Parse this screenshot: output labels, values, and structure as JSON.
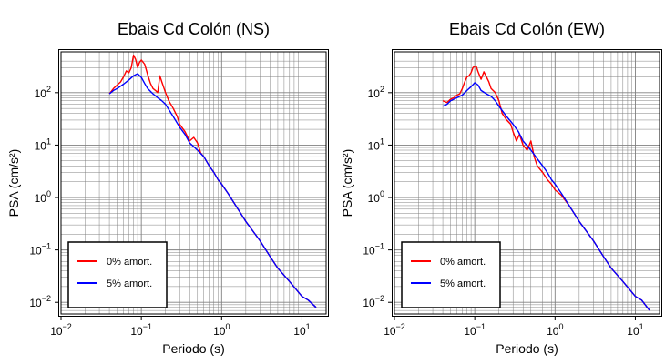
{
  "chart_data": [
    {
      "type": "line",
      "title": "Ebais Cd Colón (NS)",
      "xlabel": "Periodo (s)",
      "ylabel": "PSA (cm/s²)",
      "x_scale": "log",
      "y_scale": "log",
      "xlim": [
        0.01,
        20
      ],
      "ylim": [
        0.006,
        600
      ],
      "x_tick_labels": [
        {
          "v": 0.01,
          "base": "10",
          "exp": "−2"
        },
        {
          "v": 0.1,
          "base": "10",
          "exp": "−1"
        },
        {
          "v": 1,
          "base": "10",
          "exp": "0"
        },
        {
          "v": 10,
          "base": "10",
          "exp": "1"
        }
      ],
      "y_tick_labels": [
        {
          "v": 0.01,
          "base": "10",
          "exp": "−2"
        },
        {
          "v": 0.1,
          "base": "10",
          "exp": "−1"
        },
        {
          "v": 1,
          "base": "10",
          "exp": "0"
        },
        {
          "v": 10,
          "base": "10",
          "exp": "1"
        },
        {
          "v": 100,
          "base": "10",
          "exp": "2"
        }
      ],
      "grid": true,
      "legend_position": "bottom-left",
      "series": [
        {
          "name": "0% amort.",
          "color": "#ff0000",
          "x": [
            0.04,
            0.045,
            0.05,
            0.055,
            0.06,
            0.065,
            0.07,
            0.075,
            0.08,
            0.085,
            0.09,
            0.095,
            0.1,
            0.11,
            0.12,
            0.13,
            0.14,
            0.15,
            0.16,
            0.17,
            0.18,
            0.2,
            0.22,
            0.25,
            0.28,
            0.3,
            0.35,
            0.4,
            0.45,
            0.5,
            0.55,
            0.6,
            0.7,
            0.8,
            0.9,
            1.0,
            1.2,
            1.5,
            2,
            3,
            4,
            5,
            7,
            10,
            12,
            15
          ],
          "y": [
            95,
            120,
            140,
            160,
            200,
            260,
            240,
            300,
            520,
            430,
            300,
            380,
            420,
            350,
            220,
            150,
            120,
            110,
            100,
            210,
            160,
            100,
            70,
            50,
            35,
            25,
            18,
            12,
            14,
            11,
            7,
            6,
            4,
            3,
            2.2,
            1.8,
            1.2,
            0.7,
            0.35,
            0.15,
            0.075,
            0.045,
            0.025,
            0.013,
            0.011,
            0.008
          ]
        },
        {
          "name": "5% amort.",
          "color": "#0000ff",
          "x": [
            0.04,
            0.045,
            0.05,
            0.06,
            0.07,
            0.08,
            0.09,
            0.1,
            0.11,
            0.12,
            0.14,
            0.16,
            0.18,
            0.2,
            0.25,
            0.3,
            0.35,
            0.4,
            0.5,
            0.6,
            0.7,
            0.8,
            0.9,
            1.0,
            1.2,
            1.5,
            2,
            3,
            4,
            5,
            7,
            10,
            12,
            15
          ],
          "y": [
            95,
            110,
            120,
            145,
            175,
            210,
            230,
            195,
            150,
            120,
            95,
            80,
            70,
            60,
            35,
            22,
            16,
            11,
            8,
            6,
            4,
            3,
            2.2,
            1.8,
            1.2,
            0.7,
            0.35,
            0.15,
            0.075,
            0.045,
            0.025,
            0.013,
            0.011,
            0.008
          ]
        }
      ]
    },
    {
      "type": "line",
      "title": "Ebais Cd Colón (EW)",
      "xlabel": "Periodo (s)",
      "ylabel": "PSA (cm/s²)",
      "x_scale": "log",
      "y_scale": "log",
      "xlim": [
        0.01,
        20
      ],
      "ylim": [
        0.006,
        600
      ],
      "x_tick_labels": [
        {
          "v": 0.01,
          "base": "10",
          "exp": "−2"
        },
        {
          "v": 0.1,
          "base": "10",
          "exp": "−1"
        },
        {
          "v": 1,
          "base": "10",
          "exp": "0"
        },
        {
          "v": 10,
          "base": "10",
          "exp": "1"
        }
      ],
      "y_tick_labels": [
        {
          "v": 0.01,
          "base": "10",
          "exp": "−2"
        },
        {
          "v": 0.1,
          "base": "10",
          "exp": "−1"
        },
        {
          "v": 1,
          "base": "10",
          "exp": "0"
        },
        {
          "v": 10,
          "base": "10",
          "exp": "1"
        },
        {
          "v": 100,
          "base": "10",
          "exp": "2"
        }
      ],
      "grid": true,
      "legend_position": "bottom-left",
      "series": [
        {
          "name": "0% amort.",
          "color": "#ff0000",
          "x": [
            0.04,
            0.045,
            0.05,
            0.055,
            0.06,
            0.065,
            0.07,
            0.075,
            0.08,
            0.085,
            0.09,
            0.095,
            0.1,
            0.105,
            0.11,
            0.12,
            0.13,
            0.14,
            0.15,
            0.16,
            0.18,
            0.2,
            0.22,
            0.25,
            0.28,
            0.3,
            0.33,
            0.36,
            0.4,
            0.45,
            0.5,
            0.55,
            0.6,
            0.7,
            0.8,
            0.9,
            1.0,
            1.2,
            1.5,
            2,
            3,
            4,
            5,
            7,
            10,
            12,
            15
          ],
          "y": [
            70,
            65,
            75,
            80,
            90,
            95,
            120,
            160,
            200,
            210,
            240,
            300,
            320,
            310,
            250,
            180,
            250,
            200,
            160,
            120,
            100,
            70,
            40,
            30,
            25,
            18,
            12,
            16,
            10,
            8,
            12,
            6,
            4,
            3,
            2.2,
            1.8,
            1.4,
            1.1,
            0.7,
            0.35,
            0.15,
            0.075,
            0.045,
            0.025,
            0.013,
            0.011,
            0.007
          ]
        },
        {
          "name": "5% amort.",
          "color": "#0000ff",
          "x": [
            0.04,
            0.045,
            0.05,
            0.06,
            0.07,
            0.08,
            0.09,
            0.1,
            0.11,
            0.12,
            0.14,
            0.16,
            0.18,
            0.2,
            0.25,
            0.3,
            0.35,
            0.4,
            0.5,
            0.6,
            0.7,
            0.8,
            0.9,
            1.0,
            1.2,
            1.5,
            2,
            3,
            4,
            5,
            7,
            10,
            12,
            15
          ],
          "y": [
            55,
            60,
            70,
            80,
            90,
            110,
            130,
            155,
            140,
            110,
            95,
            85,
            70,
            55,
            35,
            25,
            18,
            12,
            8,
            5.5,
            4,
            3,
            2.2,
            1.8,
            1.2,
            0.7,
            0.35,
            0.15,
            0.075,
            0.045,
            0.025,
            0.013,
            0.011,
            0.007
          ]
        }
      ]
    }
  ]
}
